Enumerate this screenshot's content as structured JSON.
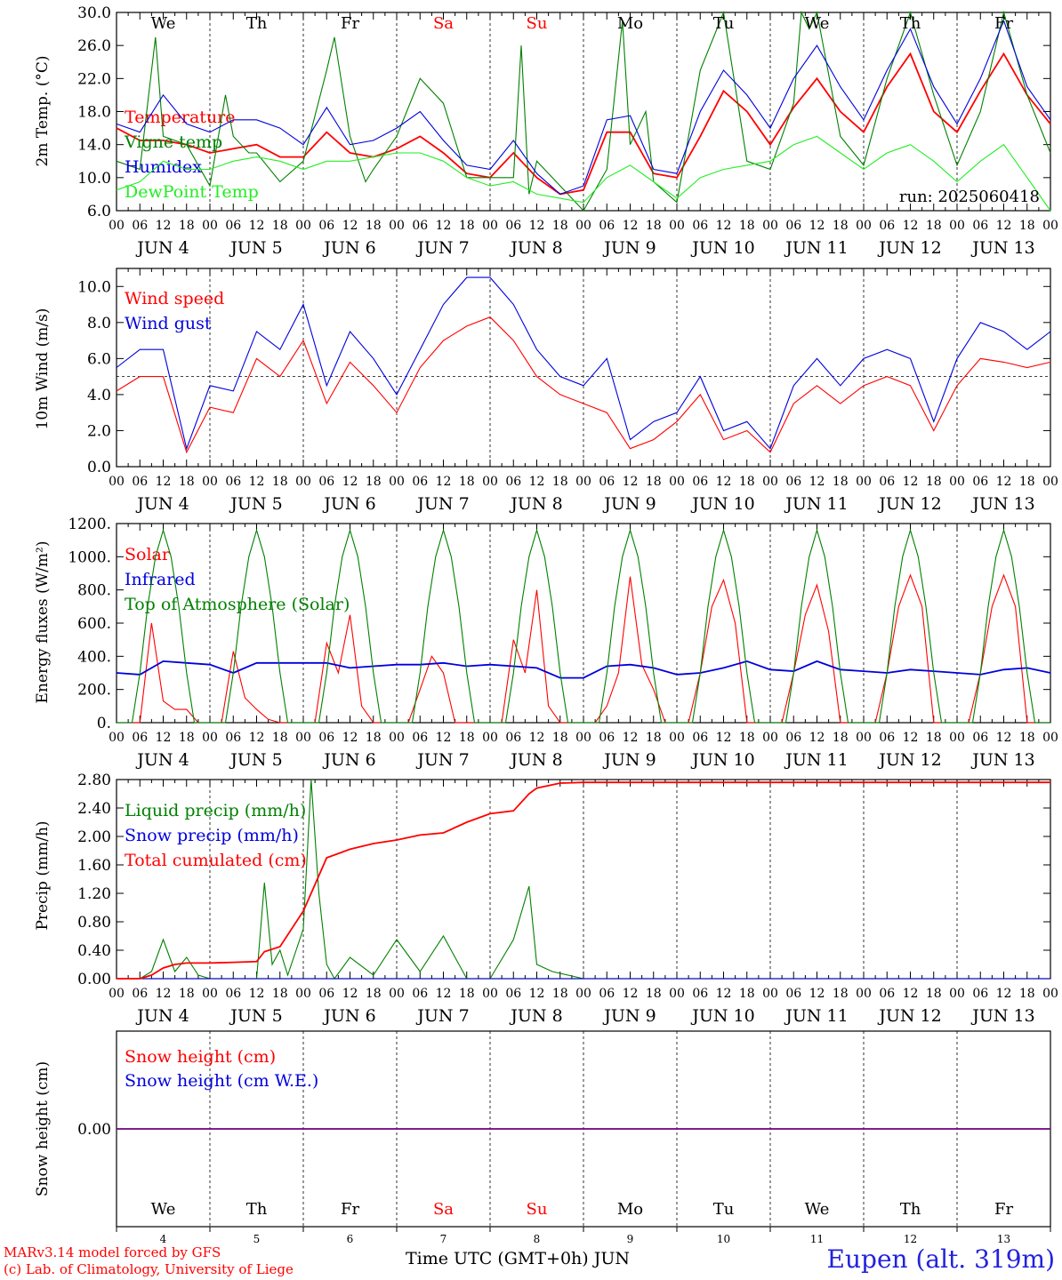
{
  "colors": {
    "red": "#ff0000",
    "green": "#008000",
    "blue": "#0000dd",
    "light_green": "#22ee22",
    "axis": "#000000"
  },
  "time_axis": {
    "hour_labels": [
      "00",
      "06",
      "12",
      "18"
    ],
    "date_labels": [
      "JUN  4",
      "JUN  5",
      "JUN  6",
      "JUN  7",
      "JUN  8",
      "JUN  9",
      "JUN 10",
      "JUN 11",
      "JUN 12",
      "JUN 13"
    ],
    "weekdays": [
      {
        "label": "We",
        "color": "#000000"
      },
      {
        "label": "Th",
        "color": "#000000"
      },
      {
        "label": "Fr",
        "color": "#000000"
      },
      {
        "label": "Sa",
        "color": "#ff0000"
      },
      {
        "label": "Su",
        "color": "#ff0000"
      },
      {
        "label": "Mo",
        "color": "#000000"
      },
      {
        "label": "Tu",
        "color": "#000000"
      },
      {
        "label": "We",
        "color": "#000000"
      },
      {
        "label": "Th",
        "color": "#000000"
      },
      {
        "label": "Fr",
        "color": "#000000"
      }
    ],
    "day_numbers": [
      "4",
      "5",
      "6",
      "7",
      "8",
      "9",
      "10",
      "11",
      "12",
      "13"
    ],
    "xlabel": "Time UTC (GMT+0h) JUN",
    "x_range_hours": [
      0,
      240
    ]
  },
  "footer": {
    "credit1": "MARv3.14 model forced by GFS",
    "credit2": "(c) Lab. of Climatology, University of Liege",
    "station": "Eupen (alt. 319m)"
  },
  "chart_data": [
    {
      "type": "line",
      "ylabel": "2m Temp. (°C)",
      "ylim": [
        6,
        30
      ],
      "yticks": [
        "6.0",
        "10.0",
        "14.0",
        "18.0",
        "22.0",
        "26.0",
        "30.0"
      ],
      "annotation": "run: 2025060418",
      "series": [
        {
          "name": "Temperature",
          "color": "#ff0000",
          "x": [
            0,
            6,
            12,
            18,
            24,
            30,
            36,
            42,
            48,
            54,
            60,
            66,
            72,
            78,
            84,
            90,
            96,
            102,
            108,
            114,
            120,
            126,
            132,
            138,
            144,
            150,
            156,
            162,
            168,
            174,
            180,
            186,
            192,
            198,
            204,
            210,
            216,
            222,
            228,
            234,
            240
          ],
          "values": [
            16,
            14.5,
            14.5,
            14,
            13,
            13.5,
            14,
            12.5,
            12.5,
            15.5,
            13,
            12.5,
            13.5,
            15,
            13,
            10.5,
            10,
            13,
            10,
            8,
            8.5,
            15.5,
            15.5,
            10.5,
            10,
            15,
            20.5,
            18,
            14,
            18.5,
            22,
            18,
            15.5,
            21,
            25,
            18,
            15.5,
            20.5,
            25,
            20,
            16.5
          ]
        },
        {
          "name": "Vigne temp",
          "color": "#008000",
          "x": [
            0,
            6,
            10,
            12,
            18,
            24,
            28,
            30,
            34,
            36,
            42,
            48,
            54,
            56,
            60,
            64,
            66,
            72,
            78,
            84,
            90,
            96,
            102,
            104,
            106,
            108,
            114,
            120,
            126,
            130,
            132,
            136,
            138,
            144,
            150,
            156,
            162,
            168,
            174,
            176,
            178,
            180,
            186,
            192,
            198,
            204,
            210,
            216,
            222,
            228,
            234,
            240
          ],
          "values": [
            12,
            11,
            27,
            15,
            14,
            9,
            20,
            15,
            13,
            13,
            9.5,
            12,
            23,
            27,
            15,
            9.5,
            11,
            15,
            22,
            19,
            10,
            10,
            10,
            26,
            8,
            12,
            9,
            5,
            11,
            29,
            14,
            18,
            9.5,
            7,
            23,
            30,
            12,
            11,
            19,
            30,
            28,
            30,
            15,
            11.5,
            22,
            30,
            20,
            11.5,
            18,
            30,
            20,
            13
          ]
        },
        {
          "name": "Humidex",
          "color": "#0000dd",
          "x": [
            0,
            6,
            12,
            18,
            24,
            30,
            36,
            42,
            48,
            54,
            60,
            66,
            72,
            78,
            84,
            90,
            96,
            102,
            108,
            114,
            120,
            126,
            132,
            138,
            144,
            150,
            156,
            162,
            168,
            174,
            180,
            186,
            192,
            198,
            204,
            210,
            216,
            222,
            228,
            234,
            240
          ],
          "values": [
            16.5,
            15.5,
            20,
            16.5,
            15.5,
            17,
            17,
            16,
            14,
            18.5,
            14,
            14.5,
            16,
            18,
            14.5,
            11.5,
            11,
            14.5,
            10.5,
            8,
            9,
            17,
            17.5,
            11,
            10.5,
            18,
            23,
            20,
            16,
            22,
            26,
            21,
            17,
            23,
            28,
            21,
            16.5,
            22,
            29,
            21,
            17
          ]
        },
        {
          "name": "DewPoint Temp",
          "color": "#22ee22",
          "x": [
            0,
            6,
            12,
            18,
            24,
            30,
            36,
            42,
            48,
            54,
            60,
            66,
            72,
            78,
            84,
            90,
            96,
            102,
            108,
            114,
            120,
            126,
            132,
            138,
            144,
            150,
            156,
            162,
            168,
            174,
            180,
            186,
            192,
            198,
            204,
            210,
            216,
            222,
            228,
            234,
            240
          ],
          "values": [
            8.5,
            9.5,
            12,
            11,
            11,
            12,
            12.5,
            12,
            11,
            12,
            12,
            12.5,
            13,
            13,
            12,
            10,
            9,
            9.5,
            8,
            7.5,
            7,
            10,
            11.5,
            9.5,
            7.5,
            10,
            11,
            11.5,
            12,
            14,
            15,
            13,
            11,
            13,
            14,
            12,
            9.5,
            12,
            14,
            10,
            6
          ]
        }
      ]
    },
    {
      "type": "line",
      "ylabel": "10m Wind (m/s)",
      "ylim": [
        0,
        11
      ],
      "yticks": [
        "0.0",
        "2.0",
        "4.0",
        "6.0",
        "8.0",
        "10.0"
      ],
      "reference_line": 5,
      "series": [
        {
          "name": "Wind speed",
          "color": "#ff0000",
          "x": [
            0,
            6,
            12,
            18,
            24,
            30,
            36,
            42,
            48,
            54,
            60,
            66,
            72,
            78,
            84,
            90,
            96,
            102,
            108,
            114,
            120,
            126,
            132,
            138,
            144,
            150,
            156,
            162,
            168,
            174,
            180,
            186,
            192,
            198,
            204,
            210,
            216,
            222,
            228,
            234,
            240
          ],
          "values": [
            4.2,
            5,
            5,
            0.8,
            3.3,
            3,
            6,
            5,
            7,
            3.5,
            5.8,
            4.5,
            3,
            5.5,
            7,
            7.8,
            8.3,
            7,
            5,
            4,
            3.5,
            3,
            1,
            1.5,
            2.5,
            4,
            1.5,
            2,
            0.8,
            3.5,
            4.5,
            3.5,
            4.5,
            5,
            4.5,
            2,
            4.5,
            6,
            5.8,
            5.5,
            5.8
          ]
        },
        {
          "name": "Wind gust",
          "color": "#0000dd",
          "x": [
            0,
            6,
            12,
            18,
            24,
            30,
            36,
            42,
            48,
            54,
            60,
            66,
            72,
            78,
            84,
            90,
            96,
            102,
            108,
            114,
            120,
            126,
            132,
            138,
            144,
            150,
            156,
            162,
            168,
            174,
            180,
            186,
            192,
            198,
            204,
            210,
            216,
            222,
            228,
            234,
            240
          ],
          "values": [
            5.5,
            6.5,
            6.5,
            1,
            4.5,
            4.2,
            7.5,
            6.5,
            9,
            4.5,
            7.5,
            6,
            4,
            6.5,
            9,
            10.5,
            10.5,
            9,
            6.5,
            5,
            4.5,
            6,
            1.5,
            2.5,
            3,
            5,
            2,
            2.5,
            1,
            4.5,
            6,
            4.5,
            6,
            6.5,
            6,
            2.5,
            6,
            8,
            7.5,
            6.5,
            7.5
          ]
        }
      ]
    },
    {
      "type": "line",
      "ylabel": "Energy fluxes (W/m²)",
      "ylim": [
        0,
        1200
      ],
      "yticks": [
        "0.",
        "200.",
        "400.",
        "600.",
        "800.",
        "1000.",
        "1200."
      ],
      "series": [
        {
          "name": "Solar",
          "color": "#ff0000",
          "x": [
            0,
            3,
            6,
            9,
            12,
            15,
            18,
            21,
            24,
            27,
            30,
            33,
            36,
            39,
            42,
            45,
            48,
            51,
            54,
            57,
            60,
            63,
            66,
            69,
            72,
            75,
            78,
            81,
            84,
            87,
            90,
            93,
            96,
            99,
            102,
            105,
            108,
            111,
            114,
            117,
            120,
            123,
            126,
            129,
            132,
            135,
            138,
            141,
            144,
            147,
            150,
            153,
            156,
            159,
            162,
            165,
            168,
            171,
            174,
            177,
            180,
            183,
            186,
            189,
            192,
            195,
            198,
            201,
            204,
            207,
            210,
            213,
            216,
            219,
            222,
            225,
            228,
            231,
            234,
            237,
            240
          ],
          "values": [
            0,
            0,
            0,
            600,
            130,
            80,
            80,
            0,
            0,
            0,
            430,
            150,
            80,
            20,
            0,
            0,
            0,
            0,
            480,
            300,
            650,
            100,
            0,
            0,
            0,
            0,
            200,
            400,
            300,
            0,
            0,
            0,
            0,
            0,
            500,
            300,
            800,
            100,
            0,
            0,
            0,
            0,
            100,
            300,
            880,
            350,
            200,
            0,
            0,
            0,
            300,
            700,
            860,
            600,
            0,
            0,
            0,
            0,
            300,
            650,
            830,
            550,
            0,
            0,
            0,
            0,
            300,
            700,
            890,
            700,
            0,
            0,
            0,
            0,
            300,
            700,
            890,
            700,
            0,
            0,
            0
          ]
        },
        {
          "name": "Infrared",
          "color": "#0000dd",
          "x": [
            0,
            6,
            12,
            18,
            24,
            30,
            36,
            42,
            48,
            54,
            60,
            66,
            72,
            78,
            84,
            90,
            96,
            102,
            108,
            114,
            120,
            126,
            132,
            138,
            144,
            150,
            156,
            162,
            168,
            174,
            180,
            186,
            192,
            198,
            204,
            210,
            216,
            222,
            228,
            234,
            240
          ],
          "values": [
            300,
            290,
            370,
            360,
            350,
            300,
            360,
            360,
            360,
            360,
            330,
            340,
            350,
            350,
            360,
            340,
            350,
            340,
            330,
            270,
            270,
            340,
            350,
            330,
            290,
            300,
            330,
            370,
            320,
            310,
            370,
            320,
            310,
            300,
            320,
            310,
            300,
            290,
            320,
            330,
            300
          ]
        },
        {
          "name": "Top of Atmosphere (Solar)",
          "color": "#008000",
          "x": [
            0,
            4,
            6,
            8,
            10,
            12,
            14,
            16,
            18,
            20,
            24
          ],
          "values": [
            0,
            0,
            300,
            700,
            1000,
            1160,
            1000,
            700,
            300,
            0,
            0
          ],
          "note": "daily repeating curve, each day"
        }
      ]
    },
    {
      "type": "line",
      "ylabel": "Precip (mm/h)",
      "ylim": [
        0,
        2.8
      ],
      "yticks": [
        "0.00",
        "0.40",
        "0.80",
        "1.20",
        "1.60",
        "2.00",
        "2.40",
        "2.80"
      ],
      "series": [
        {
          "name": "Liquid precip (mm/h)",
          "color": "#008000",
          "x": [
            0,
            6,
            9,
            12,
            15,
            18,
            21,
            24,
            30,
            36,
            38,
            40,
            42,
            44,
            48,
            50,
            52,
            54,
            56,
            60,
            66,
            72,
            78,
            84,
            90,
            96,
            102,
            106,
            108,
            112,
            120,
            240
          ],
          "values": [
            0,
            0,
            0.1,
            0.55,
            0.1,
            0.3,
            0.05,
            0,
            0,
            0,
            1.35,
            0.2,
            0.4,
            0.05,
            0.7,
            2.85,
            1.2,
            0.2,
            0,
            0.3,
            0.05,
            0.55,
            0.1,
            0.6,
            0,
            0,
            0.55,
            1.3,
            0.2,
            0.1,
            0,
            0
          ]
        },
        {
          "name": "Snow precip (mm/h)",
          "color": "#0000dd",
          "x": [
            0,
            240
          ],
          "values": [
            0,
            0
          ]
        },
        {
          "name": "Total cumulated (cm)",
          "color": "#ff0000",
          "x": [
            0,
            6,
            9,
            12,
            15,
            18,
            24,
            30,
            36,
            38,
            42,
            48,
            50,
            54,
            60,
            66,
            72,
            78,
            84,
            90,
            96,
            102,
            106,
            108,
            114,
            120,
            240
          ],
          "values": [
            0,
            0,
            0.05,
            0.15,
            0.2,
            0.22,
            0.22,
            0.23,
            0.24,
            0.38,
            0.45,
            0.95,
            1.2,
            1.7,
            1.82,
            1.9,
            1.95,
            2.02,
            2.05,
            2.2,
            2.32,
            2.36,
            2.6,
            2.68,
            2.75,
            2.76,
            2.76
          ]
        }
      ]
    },
    {
      "type": "line",
      "ylabel": "Snow height (cm)",
      "yticks": [
        "0.00"
      ],
      "series": [
        {
          "name": "Snow height (cm)",
          "color": "#ff0000",
          "x": [
            0,
            240
          ],
          "values": [
            0,
            0
          ]
        },
        {
          "name": "Snow height (cm W.E.)",
          "color": "#0000dd",
          "x": [
            0,
            240
          ],
          "values": [
            0,
            0
          ]
        }
      ]
    }
  ]
}
